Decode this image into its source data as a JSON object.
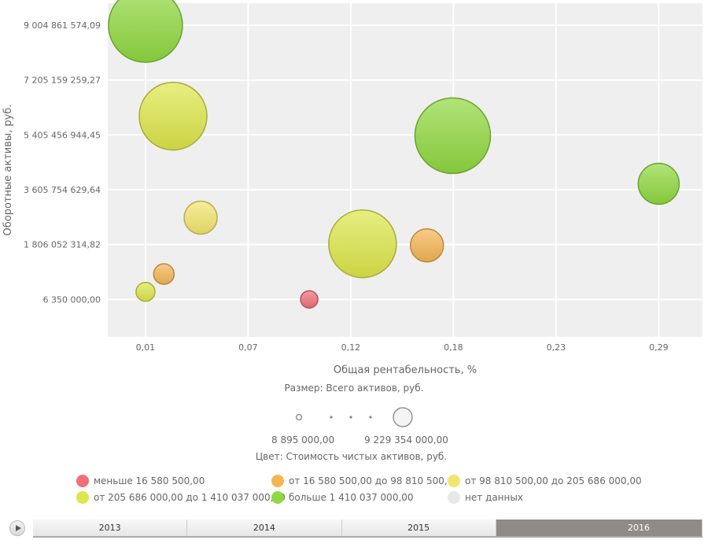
{
  "chart_data": {
    "type": "scatter",
    "subtype": "bubble",
    "xlabel": "Общая рентабельность, %",
    "ylabel": "Оборотные активы, руб.",
    "xticks": [
      0.01,
      0.0658,
      0.1216,
      0.1774,
      0.2332,
      0.289
    ],
    "xtick_labels": [
      "0,01",
      "0,07",
      "0,12",
      "0,18",
      "0,23",
      "0,29"
    ],
    "yticks": [
      6350000,
      1806052314.82,
      3605754629.64,
      5405456944.45,
      7205159259.27,
      9004861574.09
    ],
    "ytick_labels": [
      "6 350 000,00",
      "1 806 052 314,82",
      "3 605 754 629,64",
      "5 405 456 944,45",
      "7 205 159 259,27",
      "9 004 861 574,09"
    ],
    "xlim": [
      -0.0105,
      0.3128
    ],
    "ylim": [
      -1225000000,
      9730000000
    ],
    "grid": true,
    "size_legend": {
      "title": "Размер: Всего активов, руб.",
      "min_label": "8 895 000,00",
      "max_label": "9 229 354 000,00",
      "min": 8895000,
      "max": 9229354000
    },
    "color_legend": {
      "title": "Цвет: Стоимость чистых активов, руб.",
      "classes": [
        {
          "label": "меньше 16 580 500,00",
          "color": "#f0707a"
        },
        {
          "label": "от 16 580 500,00 до 98 810 500,00",
          "color": "#f5b553"
        },
        {
          "label": "от 98 810 500,00 до 205 686 000,00",
          "color": "#f2e56e"
        },
        {
          "label": "от 205 686 000,00 до 1 410 037 000,00",
          "color": "#dde64a"
        },
        {
          "label": "больше 1 410 037 000,00",
          "color": "#8fd840"
        },
        {
          "label": "нет данных",
          "color": "#e8e8e8"
        }
      ]
    },
    "points": [
      {
        "x": 0.01,
        "y": 9004861574,
        "size": 8980000000,
        "cls": 4
      },
      {
        "x": 0.025,
        "y": 6020000000,
        "size": 7980000000,
        "cls": 3
      },
      {
        "x": 0.04,
        "y": 2690000000,
        "size": 2500000000,
        "cls": 2
      },
      {
        "x": 0.02,
        "y": 837000000,
        "size": 510000000,
        "cls": 1
      },
      {
        "x": 0.01,
        "y": 255000000,
        "size": 260000000,
        "cls": 3
      },
      {
        "x": 0.099,
        "y": 6350000,
        "size": 8895000,
        "cls": 0
      },
      {
        "x": 0.128,
        "y": 1830000000,
        "size": 7980000000,
        "cls": 3
      },
      {
        "x": 0.163,
        "y": 1780000000,
        "size": 2500000000,
        "cls": 1
      },
      {
        "x": 0.177,
        "y": 5380000000,
        "size": 9229354000,
        "cls": 4
      },
      {
        "x": 0.289,
        "y": 3800000000,
        "size": 3750000000,
        "cls": 4
      }
    ]
  },
  "timeline": {
    "years": [
      "2013",
      "2014",
      "2015",
      "2016"
    ],
    "selected": "2016"
  }
}
